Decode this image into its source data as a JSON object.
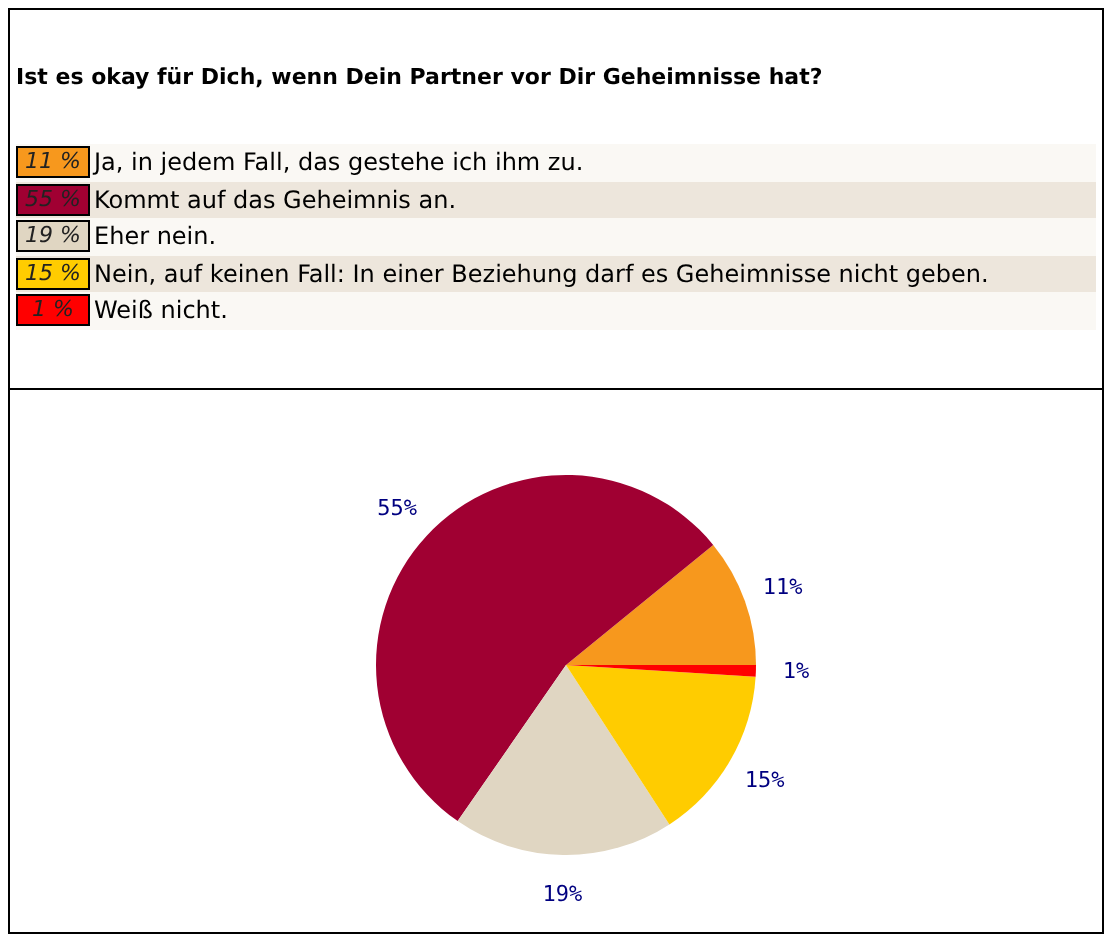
{
  "chart_data": {
    "type": "pie",
    "title": "Ist es okay für Dich, wenn Dein Partner vor Dir Geheimnisse hat?",
    "categories": [
      "Ja, in jedem Fall, das gestehe ich ihm zu.",
      "Kommt auf das Geheimnis an.",
      "Eher nein.",
      "Nein, auf keinen Fall: In einer Beziehung darf es Geheimnisse nicht geben.",
      "Weiß nicht."
    ],
    "values": [
      11,
      55,
      19,
      15,
      1
    ],
    "value_labels": [
      "11 %",
      "55 %",
      "19 %",
      "15 %",
      "1 %"
    ],
    "colors": [
      "#f7981d",
      "#a00032",
      "#e0d6c2",
      "#ffcc00",
      "#ff0000"
    ],
    "legend": "top"
  }
}
